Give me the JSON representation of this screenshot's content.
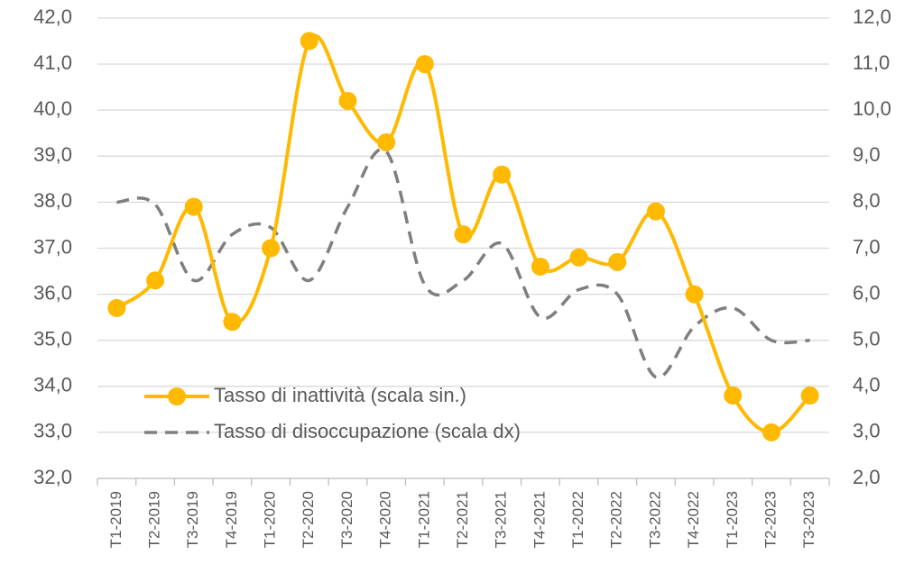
{
  "chart_data": {
    "type": "line",
    "categories": [
      "T1-2019",
      "T2-2019",
      "T3-2019",
      "T4-2019",
      "T1-2020",
      "T2-2020",
      "T3-2020",
      "T4-2020",
      "T1-2021",
      "T2-2021",
      "T3-2021",
      "T4-2021",
      "T1-2022",
      "T2-2022",
      "T3-2022",
      "T4-2022",
      "T1-2023",
      "T2-2023",
      "T3-2023"
    ],
    "series": [
      {
        "name": "Tasso di inattività (scala sin.)",
        "color": "#FFB900",
        "axis": "y",
        "values": [
          35.7,
          36.3,
          37.9,
          35.4,
          37.0,
          41.5,
          40.2,
          39.3,
          41.0,
          37.3,
          38.6,
          36.6,
          36.8,
          36.7,
          37.8,
          36.0,
          33.8,
          33.0,
          33.8
        ]
      },
      {
        "name": "Tasso di disoccupazione (scala dx)",
        "color": "#7F7F7F",
        "axis": "y2",
        "values": [
          8.0,
          7.95,
          6.3,
          7.3,
          7.45,
          6.3,
          7.9,
          9.1,
          6.2,
          6.3,
          7.1,
          5.5,
          6.1,
          6.0,
          4.2,
          5.3,
          5.7,
          5.0,
          5.0
        ]
      }
    ],
    "ylim": [
      32,
      42
    ],
    "yticks": [
      {
        "value": 32,
        "label": "32,0"
      },
      {
        "value": 33,
        "label": "33,0"
      },
      {
        "value": 34,
        "label": "34,0"
      },
      {
        "value": 35,
        "label": "35,0"
      },
      {
        "value": 36,
        "label": "36,0"
      },
      {
        "value": 37,
        "label": "37,0"
      },
      {
        "value": 38,
        "label": "38,0"
      },
      {
        "value": 39,
        "label": "39,0"
      },
      {
        "value": 40,
        "label": "40,0"
      },
      {
        "value": 41,
        "label": "41,0"
      },
      {
        "value": 42,
        "label": "42,0"
      }
    ],
    "y2lim": [
      2,
      12
    ],
    "y2ticks": [
      {
        "value": 2,
        "label": "2,0"
      },
      {
        "value": 3,
        "label": "3,0"
      },
      {
        "value": 4,
        "label": "4,0"
      },
      {
        "value": 5,
        "label": "5,0"
      },
      {
        "value": 6,
        "label": "6,0"
      },
      {
        "value": 7,
        "label": "7,0"
      },
      {
        "value": 8,
        "label": "8,0"
      },
      {
        "value": 9,
        "label": "9,0"
      },
      {
        "value": 10,
        "label": "10,0"
      },
      {
        "value": 11,
        "label": "11,0"
      },
      {
        "value": 12,
        "label": "12,0"
      }
    ],
    "grid": true
  }
}
